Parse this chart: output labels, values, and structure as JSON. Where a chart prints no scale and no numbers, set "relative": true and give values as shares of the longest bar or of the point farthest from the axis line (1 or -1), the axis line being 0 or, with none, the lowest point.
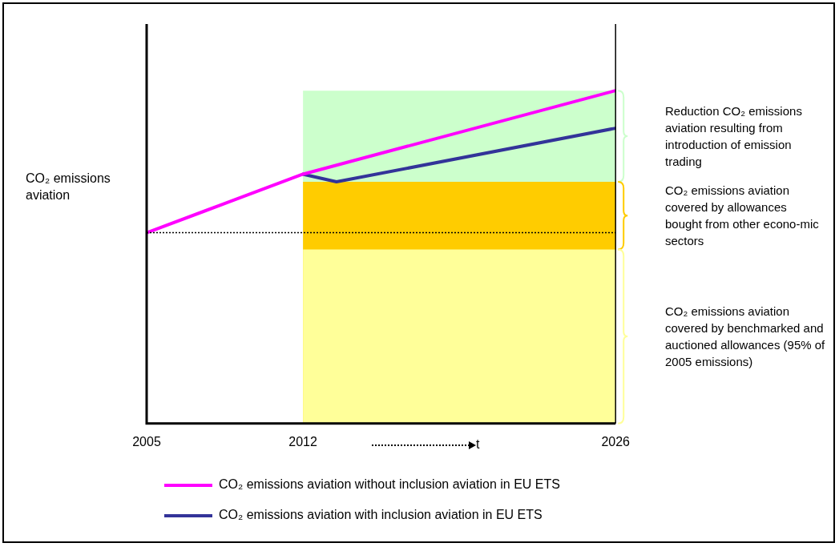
{
  "chart_data": {
    "type": "line",
    "relative": true,
    "ylabel": "CO₂ emissions aviation",
    "xlabel": "t",
    "xlim": [
      2005,
      2026
    ],
    "xticks": [
      2005,
      2012,
      2026
    ],
    "grid": false,
    "legend": "bottom",
    "marker": "none",
    "line_style": "solid",
    "series": [
      {
        "type": "area",
        "color": "#ccffcc",
        "x": [
          2012,
          2026
        ],
        "values": [
          1,
          1
        ]
      },
      {
        "type": "area",
        "color": "#ffcc00",
        "x": [
          2012,
          2026
        ],
        "values": [
          0.726,
          0.726
        ]
      },
      {
        "type": "area",
        "color": "#ffff99",
        "x": [
          2012,
          2026
        ],
        "values": [
          0.523,
          0.523
        ]
      },
      {
        "type": "line",
        "name": "CO₂ emissions aviation without inclusion aviation in EU ETS",
        "color": "#ff00ff",
        "x": [
          2005,
          2012,
          2026
        ],
        "values": [
          0.573,
          0.749,
          1
        ]
      },
      {
        "type": "line",
        "name": "CO₂ emissions aviation with inclusion aviation in EU ETS",
        "color": "#333399",
        "x": [
          2012,
          2013.5,
          2026
        ],
        "values": [
          0.749,
          0.726,
          0.887
        ]
      }
    ],
    "ref_lines": [
      {
        "axis": "y",
        "value": 0.573,
        "color": "#000000",
        "line_style": "dotted"
      },
      {
        "axis": "x",
        "value": 2026,
        "color": "#000000",
        "line_style": "solid"
      }
    ],
    "annotations": [
      "Reduction CO₂ emissions aviation resulting from introduction of emission trading",
      "CO₂ emissions aviation covered by allowances bought from other econo-mic sectors",
      "CO₂ emissions aviation covered by benchmarked and auctioned allowances (95% of 2005 emissions)"
    ]
  }
}
